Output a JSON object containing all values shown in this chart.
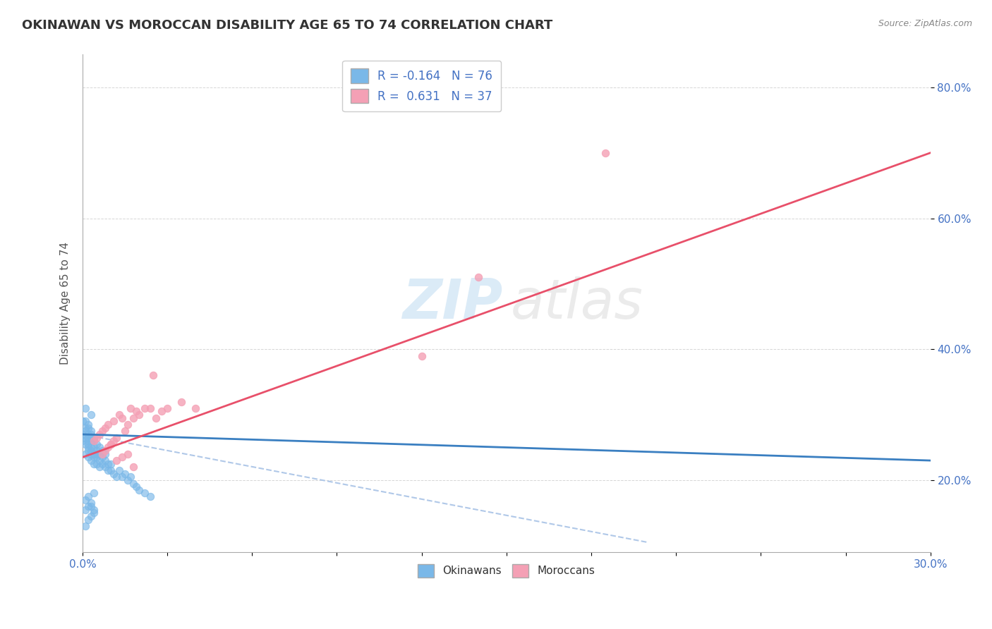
{
  "title": "OKINAWAN VS MOROCCAN DISABILITY AGE 65 TO 74 CORRELATION CHART",
  "source": "Source: ZipAtlas.com",
  "ylabel": "Disability Age 65 to 74",
  "legend_okinawan": "R = -0.164   N = 76",
  "legend_moroccan": "R =  0.631   N = 37",
  "legend_label_okinawan": "Okinawans",
  "legend_label_moroccan": "Moroccans",
  "blue_color": "#7ab8e8",
  "pink_color": "#f4a0b5",
  "blue_line_color": "#3a7fc1",
  "pink_line_color": "#e8506a",
  "dashed_color": "#b0c8e8",
  "xlim": [
    0.0,
    0.3
  ],
  "ylim": [
    0.09,
    0.85
  ],
  "okinawan_x": [
    0.0,
    0.0,
    0.001,
    0.001,
    0.001,
    0.001,
    0.001,
    0.001,
    0.002,
    0.002,
    0.002,
    0.002,
    0.002,
    0.002,
    0.002,
    0.002,
    0.003,
    0.003,
    0.003,
    0.003,
    0.003,
    0.003,
    0.003,
    0.004,
    0.004,
    0.004,
    0.004,
    0.004,
    0.004,
    0.005,
    0.005,
    0.005,
    0.005,
    0.005,
    0.006,
    0.006,
    0.006,
    0.006,
    0.007,
    0.007,
    0.007,
    0.008,
    0.008,
    0.008,
    0.009,
    0.009,
    0.01,
    0.01,
    0.011,
    0.012,
    0.013,
    0.014,
    0.015,
    0.016,
    0.017,
    0.018,
    0.019,
    0.02,
    0.022,
    0.024,
    0.0,
    0.001,
    0.002,
    0.003,
    0.001,
    0.002,
    0.001,
    0.002,
    0.003,
    0.004,
    0.001,
    0.003,
    0.004,
    0.002,
    0.003,
    0.004
  ],
  "okinawan_y": [
    0.26,
    0.27,
    0.265,
    0.255,
    0.24,
    0.275,
    0.28,
    0.29,
    0.25,
    0.26,
    0.27,
    0.255,
    0.245,
    0.28,
    0.265,
    0.235,
    0.25,
    0.26,
    0.27,
    0.245,
    0.23,
    0.275,
    0.24,
    0.24,
    0.25,
    0.26,
    0.235,
    0.225,
    0.265,
    0.245,
    0.235,
    0.255,
    0.225,
    0.24,
    0.23,
    0.24,
    0.25,
    0.22,
    0.235,
    0.225,
    0.245,
    0.22,
    0.23,
    0.24,
    0.215,
    0.225,
    0.215,
    0.225,
    0.21,
    0.205,
    0.215,
    0.205,
    0.21,
    0.2,
    0.205,
    0.195,
    0.19,
    0.185,
    0.18,
    0.175,
    0.29,
    0.31,
    0.285,
    0.3,
    0.155,
    0.16,
    0.13,
    0.14,
    0.145,
    0.15,
    0.17,
    0.165,
    0.155,
    0.175,
    0.16,
    0.18
  ],
  "moroccan_x": [
    0.004,
    0.005,
    0.006,
    0.007,
    0.008,
    0.009,
    0.01,
    0.011,
    0.012,
    0.013,
    0.014,
    0.015,
    0.016,
    0.017,
    0.018,
    0.019,
    0.02,
    0.022,
    0.024,
    0.026,
    0.028,
    0.03,
    0.035,
    0.04,
    0.007,
    0.008,
    0.009,
    0.01,
    0.011,
    0.012,
    0.014,
    0.016,
    0.018,
    0.025,
    0.12,
    0.14,
    0.185
  ],
  "moroccan_y": [
    0.26,
    0.265,
    0.27,
    0.275,
    0.28,
    0.285,
    0.255,
    0.29,
    0.265,
    0.3,
    0.295,
    0.275,
    0.285,
    0.31,
    0.295,
    0.305,
    0.3,
    0.31,
    0.31,
    0.295,
    0.305,
    0.31,
    0.32,
    0.31,
    0.24,
    0.245,
    0.25,
    0.255,
    0.26,
    0.23,
    0.235,
    0.24,
    0.22,
    0.36,
    0.39,
    0.51,
    0.7
  ],
  "okinawan_trend": [
    0.0,
    0.3,
    0.27,
    0.23
  ],
  "moroccan_trend": [
    0.0,
    0.3,
    0.235,
    0.7
  ],
  "dashed_trend": [
    0.0,
    0.2,
    0.27,
    0.105
  ]
}
